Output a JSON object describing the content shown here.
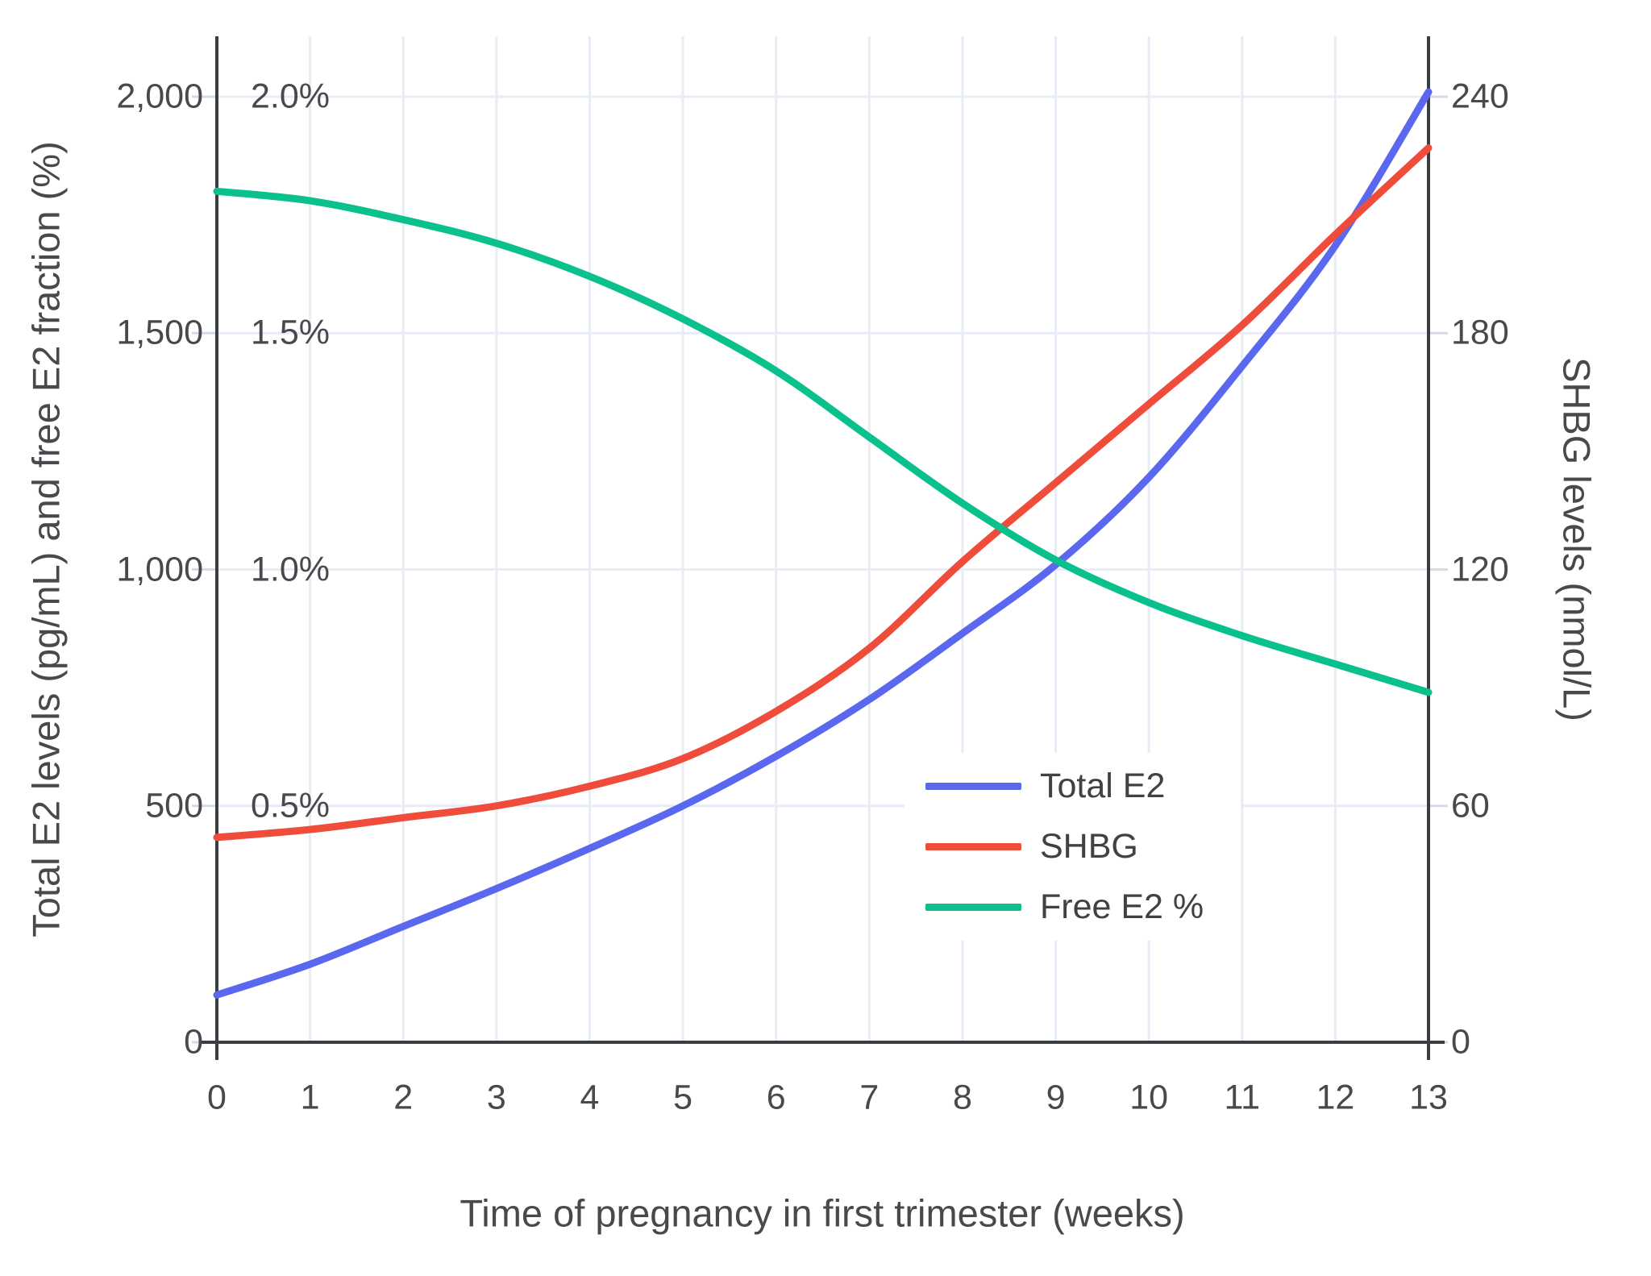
{
  "chart_data": {
    "type": "line",
    "title": "",
    "xlabel": "Time of pregnancy in first trimester (weeks)",
    "ylabel_left": "Total E2 levels (pg/mL) and free E2 fraction (%)",
    "ylabel_right": "SHBG levels (nmol/L)",
    "x": [
      0,
      1,
      2,
      3,
      4,
      5,
      6,
      7,
      8,
      9,
      10,
      11,
      12,
      13
    ],
    "x_tick_labels": [
      "0",
      "1",
      "2",
      "3",
      "4",
      "5",
      "6",
      "7",
      "8",
      "9",
      "10",
      "11",
      "12",
      "13"
    ],
    "x_range": [
      0,
      13
    ],
    "left_axis_range": [
      0,
      2130
    ],
    "right_axis_range": [
      0,
      255.6
    ],
    "grid": true,
    "legend_position": "inside-lower-right",
    "left_axis_ticks": [
      {
        "value": 0,
        "label": "0"
      },
      {
        "value": 500,
        "label": "500"
      },
      {
        "value": 1000,
        "label": "1,000"
      },
      {
        "value": 1500,
        "label": "1,500"
      },
      {
        "value": 2000,
        "label": "2,000"
      }
    ],
    "percent_ticks": [
      {
        "value": 500,
        "label": "0.5%"
      },
      {
        "value": 1000,
        "label": "1.0%"
      },
      {
        "value": 1500,
        "label": "1.5%"
      },
      {
        "value": 2000,
        "label": "2.0%"
      }
    ],
    "right_axis_ticks": [
      {
        "value": 0,
        "label": "0"
      },
      {
        "value": 60,
        "label": "60"
      },
      {
        "value": 120,
        "label": "120"
      },
      {
        "value": 180,
        "label": "180"
      },
      {
        "value": 240,
        "label": "240"
      }
    ],
    "series": [
      {
        "name": "Total E2",
        "axis": "left",
        "unit": "pg/mL",
        "color": "#5a68f0",
        "values": [
          100,
          165,
          245,
          325,
          410,
          500,
          605,
          725,
          865,
          1010,
          1195,
          1430,
          1685,
          2010
        ]
      },
      {
        "name": "SHBG",
        "axis": "right",
        "unit": "nmol/L",
        "color": "#ef4c3b",
        "values": [
          52,
          54,
          57,
          60,
          65,
          72,
          84,
          100,
          122,
          142,
          162,
          182,
          205,
          227
        ]
      },
      {
        "name": "Free E2 %",
        "axis": "percent",
        "unit": "%",
        "color": "#0ac18e",
        "values": [
          1.8,
          1.78,
          1.74,
          1.69,
          1.62,
          1.53,
          1.42,
          1.28,
          1.14,
          1.02,
          0.93,
          0.86,
          0.8,
          0.74
        ]
      }
    ]
  },
  "colors": {
    "background": "#ffffff",
    "grid": "#e7ecf5",
    "tick_stub": "#d5dbe6",
    "axis_line": "#3a3e42",
    "text": "#47494c"
  }
}
